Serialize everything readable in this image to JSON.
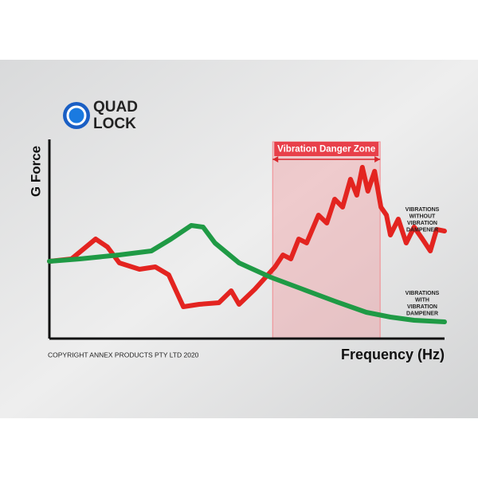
{
  "chart_data": {
    "type": "line",
    "logo": [
      "QUAD",
      "LOCK"
    ],
    "y_label": "G Force",
    "x_label": "Frequency (Hz)",
    "copyright": "COPYRIGHT ANNEX PRODUCTS PTY LTD 2020",
    "xlim": [
      0,
      100
    ],
    "ylim": [
      0,
      100
    ],
    "zone": {
      "label": "Vibration Danger Zone",
      "x": [
        56.5,
        83.7
      ],
      "color": "#f08a8f"
    },
    "series": [
      {
        "name": "VIBRATIONS WITHOUT VIBRATION DAMPENER",
        "color": "#e32420",
        "x": [
          0,
          5.6,
          11.7,
          14.7,
          17.7,
          22.8,
          26.8,
          30.2,
          33.9,
          37.9,
          42.9,
          46,
          48,
          52,
          57.1,
          59.1,
          61.1,
          63.1,
          65.1,
          68.1,
          70.2,
          72.2,
          74.2,
          76.2,
          77.8,
          79.2,
          80.6,
          82.3,
          83.9,
          85.3,
          86.3,
          88.3,
          90.3,
          92.3,
          94.4,
          96.4,
          98,
          100
        ],
        "values": [
          38.8,
          40,
          50,
          46,
          38,
          34.8,
          36,
          32,
          16,
          17.2,
          18,
          24,
          17.2,
          24.8,
          36,
          42,
          40,
          50,
          48,
          62,
          58,
          70,
          66,
          80,
          72,
          86,
          74,
          84,
          66,
          62,
          52,
          60,
          48,
          56,
          50,
          44,
          54.8,
          54
        ]
      },
      {
        "name": "VIBRATIONS WITH VIBRATION DAMPENER",
        "color": "#1f9a45",
        "x": [
          0,
          7.7,
          17.7,
          25.8,
          30.8,
          35.9,
          38.9,
          41.9,
          48,
          56,
          64.1,
          72.2,
          80.2,
          86.3,
          92.3,
          100
        ],
        "values": [
          38.8,
          40,
          42,
          44,
          50,
          56.8,
          56,
          48,
          38,
          30.8,
          24.8,
          18.8,
          13.2,
          10.8,
          9.2,
          8.4
        ]
      }
    ]
  }
}
